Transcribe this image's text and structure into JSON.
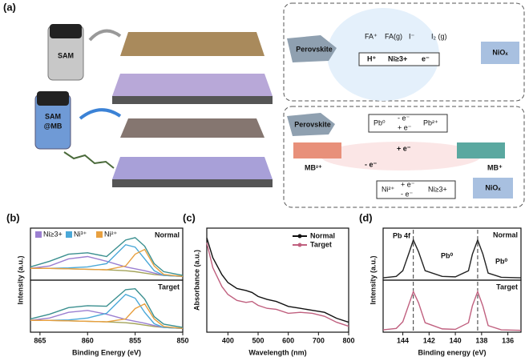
{
  "diagram": {
    "label": "(a)",
    "bottle1": "SAM",
    "bottle2": [
      "SAM",
      "@MB"
    ],
    "top_box": {
      "perovskite": "Perovskite",
      "fa_plus": "FA⁺",
      "fa_g": "FA(g)",
      "h_plus": "H⁺",
      "ni": "Ni≥3+",
      "e": "e⁻",
      "i_minus": "I⁻",
      "i2": "I₂ (g)",
      "niox": "NiOₓ"
    },
    "bottom_box": {
      "perovskite": "Perovskite",
      "pb0": "Pb⁰",
      "minus_e_top": "- e⁻",
      "plus_e_bottom": "+ e⁻",
      "pb2": "Pb²⁺",
      "plus_e_mid": "+ e⁻",
      "minus_e_mid": "- e⁻",
      "mb2": "MB²⁺",
      "mb1": "MB⁺",
      "ni2": "Ni²⁺",
      "plus_e_ni": "+ e⁻",
      "minus_e_ni": "- e⁻",
      "ni3": "Ni≥3+",
      "niox": "NiOₓ"
    }
  },
  "chart_data": [
    {
      "type": "line",
      "label": "(b)",
      "xlabel": "Binding Energy (eV)",
      "ylabel": "Intensity (a.u.)",
      "xlim": [
        866,
        850
      ],
      "xticks": [
        865,
        860,
        855,
        850
      ],
      "ylim": [
        0,
        1
      ],
      "x": [
        866,
        864,
        862,
        860,
        858,
        856,
        855,
        854,
        853,
        852,
        850
      ],
      "panels": [
        {
          "title": "Normal",
          "title_color": "#222222",
          "series": [
            {
              "color": "#a3a35a",
              "values": [
                0.25,
                0.25,
                0.24,
                0.23,
                0.22,
                0.2,
                0.18,
                0.15,
                0.12,
                0.1,
                0.08
              ]
            },
            {
              "name": "Ni≥3+",
              "color": "#9b7fd1",
              "values": [
                0.25,
                0.3,
                0.45,
                0.5,
                0.4,
                0.28,
                0.24,
                0.2,
                0.15,
                0.1,
                0.08
              ]
            },
            {
              "name": "Ni³⁺",
              "color": "#4aa8d8",
              "values": [
                0.25,
                0.25,
                0.26,
                0.28,
                0.35,
                0.75,
                0.7,
                0.45,
                0.2,
                0.1,
                0.08
              ]
            },
            {
              "name": "Ni²⁺",
              "color": "#e8a040",
              "values": [
                0.25,
                0.25,
                0.24,
                0.23,
                0.22,
                0.3,
                0.55,
                0.65,
                0.3,
                0.12,
                0.08
              ]
            },
            {
              "color": "#3a8f8f",
              "values": [
                0.28,
                0.4,
                0.55,
                0.58,
                0.5,
                0.85,
                0.9,
                0.72,
                0.35,
                0.18,
                0.1
              ]
            }
          ]
        },
        {
          "title": "Target",
          "title_color": "#c0607f",
          "series": [
            {
              "color": "#a3a35a",
              "values": [
                0.25,
                0.25,
                0.24,
                0.23,
                0.22,
                0.2,
                0.18,
                0.15,
                0.12,
                0.1,
                0.08
              ]
            },
            {
              "color": "#9b7fd1",
              "values": [
                0.25,
                0.3,
                0.42,
                0.46,
                0.38,
                0.27,
                0.23,
                0.19,
                0.14,
                0.1,
                0.08
              ]
            },
            {
              "color": "#4aa8d8",
              "values": [
                0.25,
                0.25,
                0.26,
                0.3,
                0.4,
                0.8,
                0.72,
                0.42,
                0.18,
                0.1,
                0.08
              ]
            },
            {
              "color": "#e8a040",
              "values": [
                0.25,
                0.25,
                0.24,
                0.23,
                0.22,
                0.28,
                0.5,
                0.6,
                0.28,
                0.12,
                0.08
              ]
            },
            {
              "color": "#3a8f8f",
              "values": [
                0.28,
                0.38,
                0.52,
                0.56,
                0.55,
                0.9,
                0.92,
                0.7,
                0.33,
                0.17,
                0.1
              ]
            }
          ]
        }
      ]
    },
    {
      "type": "line",
      "label": "(c)",
      "xlabel": "Wavelength (nm)",
      "ylabel": "Absorbance (a.u.)",
      "xlim": [
        330,
        800
      ],
      "xticks": [
        400,
        500,
        600,
        700,
        800
      ],
      "ylim": [
        0,
        1
      ],
      "x": [
        330,
        350,
        380,
        400,
        430,
        460,
        480,
        500,
        530,
        560,
        600,
        640,
        680,
        720,
        760,
        800
      ],
      "panels": [
        {
          "series": [
            {
              "name": "Normal",
              "color": "#111111",
              "values": [
                0.95,
                0.75,
                0.58,
                0.5,
                0.44,
                0.42,
                0.4,
                0.36,
                0.33,
                0.31,
                0.26,
                0.24,
                0.22,
                0.2,
                0.14,
                0.1
              ]
            },
            {
              "name": "Target",
              "color": "#c0607f",
              "values": [
                0.9,
                0.65,
                0.46,
                0.38,
                0.32,
                0.3,
                0.31,
                0.27,
                0.24,
                0.23,
                0.19,
                0.2,
                0.19,
                0.16,
                0.1,
                0.06
              ]
            }
          ]
        }
      ]
    },
    {
      "type": "line",
      "label": "(d)",
      "xlabel": "Binding energy (eV)",
      "ylabel": "Intensity (a.u.)",
      "xlim": [
        145.5,
        135
      ],
      "xticks": [
        144,
        142,
        140,
        138,
        136
      ],
      "ylim": [
        0,
        1
      ],
      "markers": [
        143.2,
        138.3
      ],
      "annotations": [
        "Pb 4f",
        "Pb⁰",
        "Pb⁰"
      ],
      "x": [
        145.5,
        144.5,
        144,
        143.5,
        143.2,
        142.8,
        142.3,
        141,
        140,
        139,
        138.7,
        138.3,
        137.9,
        137.5,
        136.5,
        135
      ],
      "panels": [
        {
          "title": "Normal",
          "title_color": "#222222",
          "series": [
            {
              "color": "#222222",
              "values": [
                0.05,
                0.08,
                0.2,
                0.6,
                0.85,
                0.6,
                0.2,
                0.08,
                0.07,
                0.2,
                0.55,
                0.85,
                0.55,
                0.15,
                0.06,
                0.05
              ]
            }
          ]
        },
        {
          "title": "Target",
          "title_color": "#c0607f",
          "series": [
            {
              "color": "#c0607f",
              "values": [
                0.05,
                0.08,
                0.22,
                0.62,
                0.86,
                0.62,
                0.2,
                0.07,
                0.06,
                0.2,
                0.56,
                0.86,
                0.55,
                0.14,
                0.05,
                0.04
              ]
            }
          ]
        }
      ]
    }
  ]
}
